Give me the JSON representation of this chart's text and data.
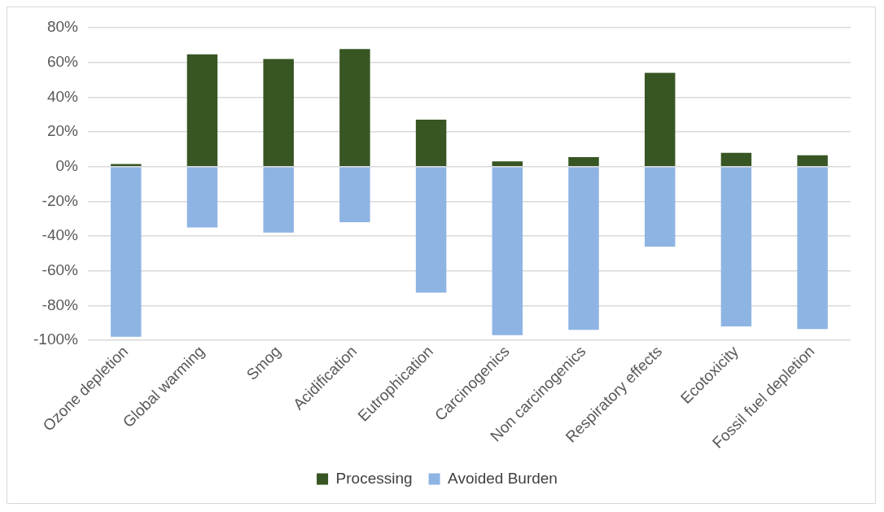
{
  "chart_data": {
    "type": "bar",
    "stacked": true,
    "categories": [
      "Ozone depletion",
      "Global warming",
      "Smog",
      "Acidification",
      "Eutrophication",
      "Carcinogenics",
      "Non carcinogenics",
      "Respiratory effects",
      "Ecotoxicity",
      "Fossil fuel depletion"
    ],
    "series": [
      {
        "name": "Processing",
        "color": "#375623",
        "values": [
          1.5,
          64.7,
          62,
          67.7,
          27,
          3,
          5.5,
          54,
          8,
          6.5
        ]
      },
      {
        "name": "Avoided Burden",
        "color": "#8eb4e3",
        "values": [
          -98,
          -35,
          -38,
          -32,
          -72.5,
          -97,
          -94,
          -46,
          -92,
          -93.5
        ]
      }
    ],
    "ylim": [
      -100,
      80
    ],
    "yticks": [
      {
        "value": -100,
        "label": "-100%"
      },
      {
        "value": -80,
        "label": "-80%"
      },
      {
        "value": -60,
        "label": "-60%"
      },
      {
        "value": -40,
        "label": "-40%"
      },
      {
        "value": -20,
        "label": "-20%"
      },
      {
        "value": 0,
        "label": "0%"
      },
      {
        "value": 20,
        "label": "20%"
      },
      {
        "value": 40,
        "label": "40%"
      },
      {
        "value": 60,
        "label": "60%"
      },
      {
        "value": 80,
        "label": "80%"
      }
    ],
    "grid": "y",
    "legend": "bottom"
  }
}
